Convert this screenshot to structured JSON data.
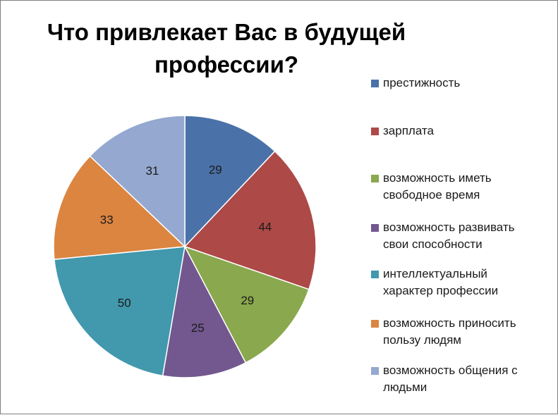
{
  "chart_data": {
    "type": "pie",
    "title": "Что привлекает Вас в будущей\nпрофессии?",
    "legend_position": "right",
    "slices": [
      {
        "label": "престижность",
        "value": 29,
        "color": "#4a72a8"
      },
      {
        "label": "зарплата",
        "value": 44,
        "color": "#ad4947"
      },
      {
        "label": "возможность иметь\nсвободное время",
        "value": 29,
        "color": "#8aa84d"
      },
      {
        "label": "возможность развивать\nсвои способности",
        "value": 25,
        "color": "#72588f"
      },
      {
        "label": "интеллектуальный\nхарактер профессии",
        "value": 50,
        "color": "#4298ad"
      },
      {
        "label": "возможность приносить\nпользу людям",
        "value": 33,
        "color": "#db8541"
      },
      {
        "label": "возможность общения с\nлюдьми",
        "value": 31,
        "color": "#94a8d0"
      }
    ]
  }
}
